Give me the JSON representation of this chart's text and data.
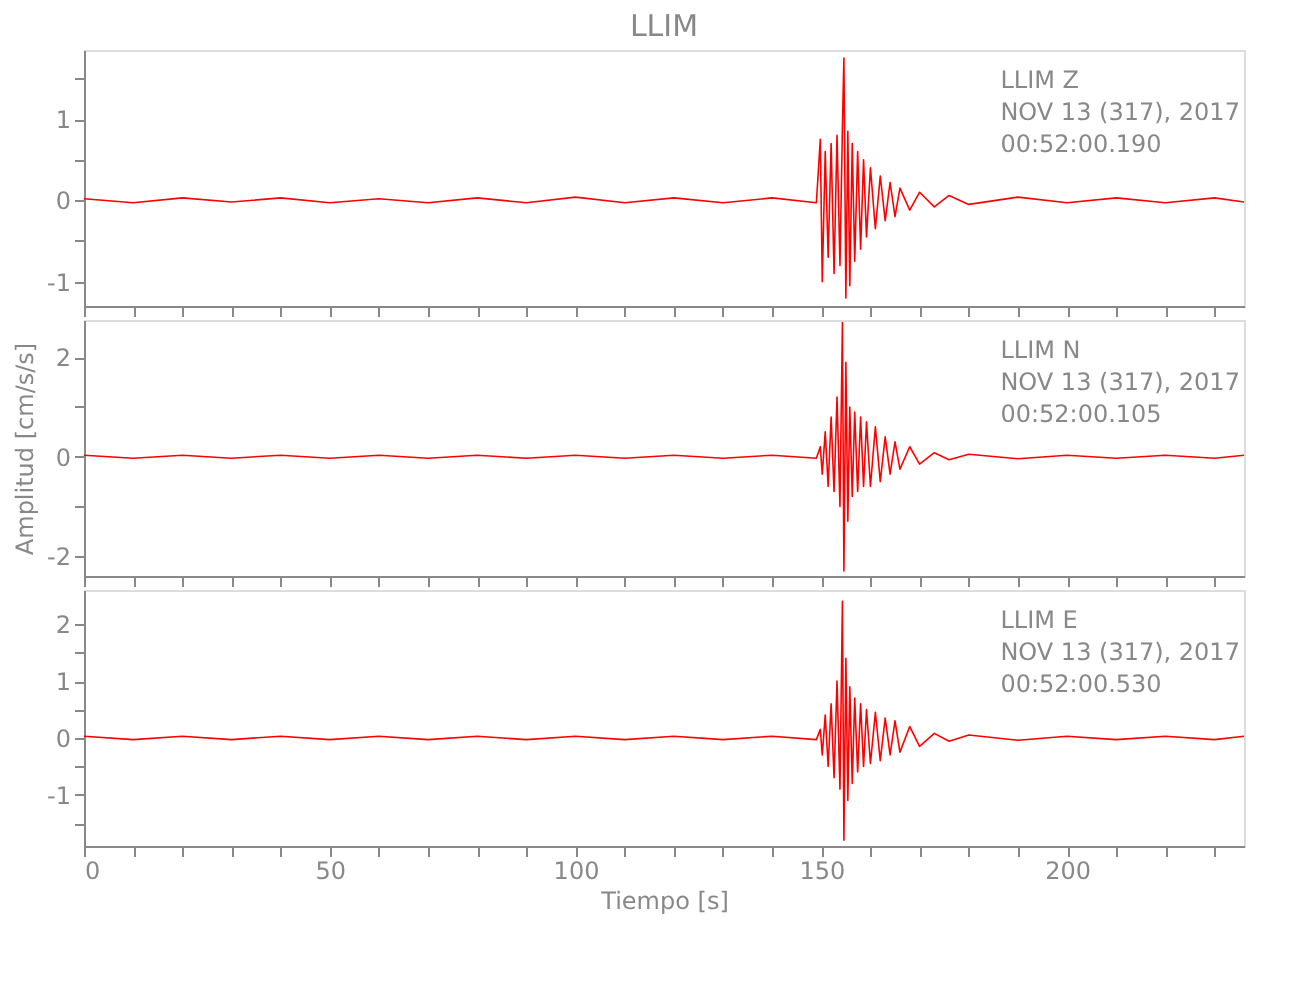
{
  "chart_data": [
    {
      "type": "line",
      "title": "LLIM",
      "annotations": [
        "LLIM   Z",
        "NOV 13 (317), 2017",
        "00:52:00.190"
      ],
      "tick_labels": "y",
      "grid": false,
      "x": [
        0,
        10,
        20,
        30,
        40,
        50,
        60,
        70,
        80,
        90,
        100,
        110,
        120,
        130,
        140,
        149,
        149.8,
        150.2,
        150.8,
        151.4,
        152,
        152.6,
        153.2,
        153.8,
        154.3,
        154.6,
        155,
        155.4,
        155.8,
        156.3,
        156.8,
        157.4,
        158,
        158.6,
        159.2,
        160,
        161,
        162,
        163,
        164,
        165,
        166,
        168,
        170,
        173,
        176,
        180,
        190,
        200,
        210,
        220,
        230,
        236
      ],
      "series": [
        {
          "color": "#ff0000",
          "values": [
            0.02,
            -0.03,
            0.03,
            -0.02,
            0.03,
            -0.03,
            0.02,
            -0.03,
            0.03,
            -0.03,
            0.04,
            -0.03,
            0.03,
            -0.03,
            0.03,
            -0.03,
            0.75,
            -1.0,
            0.6,
            -0.7,
            0.7,
            -0.9,
            0.8,
            -0.8,
            0.9,
            1.75,
            -1.2,
            0.85,
            -1.05,
            0.7,
            -0.75,
            0.6,
            -0.6,
            0.5,
            -0.45,
            0.4,
            -0.35,
            0.3,
            -0.25,
            0.22,
            -0.2,
            0.15,
            -0.12,
            0.1,
            -0.08,
            0.06,
            -0.05,
            0.04,
            -0.03,
            0.03,
            -0.03,
            0.03,
            -0.02
          ]
        }
      ],
      "xlim": [
        0,
        236
      ],
      "xticks": [
        0,
        {
          "value": 10,
          "label": null
        },
        {
          "value": 20,
          "label": null
        },
        {
          "value": 30,
          "label": null
        },
        {
          "value": 40,
          "label": null
        },
        50,
        {
          "value": 60,
          "label": null
        },
        {
          "value": 70,
          "label": null
        },
        {
          "value": 80,
          "label": null
        },
        {
          "value": 90,
          "label": null
        },
        100,
        {
          "value": 110,
          "label": null
        },
        {
          "value": 120,
          "label": null
        },
        {
          "value": 130,
          "label": null
        },
        {
          "value": 140,
          "label": null
        },
        150,
        {
          "value": 160,
          "label": null
        },
        {
          "value": 170,
          "label": null
        },
        {
          "value": 180,
          "label": null
        },
        {
          "value": 190,
          "label": null
        },
        200,
        {
          "value": 210,
          "label": null
        },
        {
          "value": 220,
          "label": null
        },
        {
          "value": 230,
          "label": null
        }
      ],
      "ylim": [
        -1.3,
        1.85
      ],
      "yticks": [
        -1,
        {
          "value": -0.5,
          "label": null
        },
        0,
        {
          "value": 0.5,
          "label": null
        },
        1,
        {
          "value": 1.5,
          "label": null
        }
      ]
    },
    {
      "type": "line",
      "ylabel": "Amplitud [cm/s/s]",
      "annotations": [
        "LLIM   N",
        "NOV 13 (317), 2017",
        "00:52:00.105"
      ],
      "tick_labels": "y",
      "grid": false,
      "x": [
        0,
        10,
        20,
        30,
        40,
        50,
        60,
        70,
        80,
        90,
        100,
        110,
        120,
        130,
        140,
        149,
        149.8,
        150.2,
        150.8,
        151.4,
        152,
        152.6,
        153.2,
        153.8,
        154.3,
        154.6,
        155,
        155.4,
        155.8,
        156.3,
        156.8,
        157.4,
        158,
        158.6,
        159.2,
        160,
        161,
        162,
        163,
        164,
        165,
        166,
        168,
        170,
        173,
        176,
        180,
        190,
        200,
        210,
        220,
        230,
        236
      ],
      "series": [
        {
          "color": "#ff0000",
          "values": [
            0.03,
            -0.03,
            0.03,
            -0.03,
            0.03,
            -0.03,
            0.03,
            -0.03,
            0.03,
            -0.03,
            0.03,
            -0.03,
            0.03,
            -0.03,
            0.03,
            -0.03,
            0.2,
            -0.35,
            0.5,
            -0.6,
            0.8,
            -0.7,
            1.2,
            -1.0,
            2.7,
            -2.3,
            1.9,
            -1.3,
            1.0,
            -0.8,
            0.9,
            -0.7,
            0.8,
            -0.6,
            0.7,
            -0.6,
            0.6,
            -0.5,
            0.4,
            -0.35,
            0.3,
            -0.25,
            0.2,
            -0.15,
            0.08,
            -0.06,
            0.05,
            -0.04,
            0.03,
            -0.03,
            0.03,
            -0.03,
            0.03
          ]
        }
      ],
      "xlim": [
        0,
        236
      ],
      "xticks": [
        0,
        {
          "value": 10,
          "label": null
        },
        {
          "value": 20,
          "label": null
        },
        {
          "value": 30,
          "label": null
        },
        {
          "value": 40,
          "label": null
        },
        50,
        {
          "value": 60,
          "label": null
        },
        {
          "value": 70,
          "label": null
        },
        {
          "value": 80,
          "label": null
        },
        {
          "value": 90,
          "label": null
        },
        100,
        {
          "value": 110,
          "label": null
        },
        {
          "value": 120,
          "label": null
        },
        {
          "value": 130,
          "label": null
        },
        {
          "value": 140,
          "label": null
        },
        150,
        {
          "value": 160,
          "label": null
        },
        {
          "value": 170,
          "label": null
        },
        {
          "value": 180,
          "label": null
        },
        {
          "value": 190,
          "label": null
        },
        200,
        {
          "value": 210,
          "label": null
        },
        {
          "value": 220,
          "label": null
        },
        {
          "value": 230,
          "label": null
        }
      ],
      "ylim": [
        -2.4,
        2.75
      ],
      "yticks": [
        -2,
        {
          "value": -1,
          "label": null
        },
        0,
        {
          "value": 1,
          "label": null
        },
        2
      ]
    },
    {
      "type": "line",
      "xlabel": "Tiempo [s]",
      "annotations": [
        "LLIM   E",
        "NOV 13 (317), 2017",
        "00:52:00.530"
      ],
      "grid": false,
      "x": [
        0,
        10,
        20,
        30,
        40,
        50,
        60,
        70,
        80,
        90,
        100,
        110,
        120,
        130,
        140,
        149,
        149.8,
        150.2,
        150.8,
        151.4,
        152,
        152.6,
        153.2,
        153.8,
        154.3,
        154.6,
        155,
        155.4,
        155.8,
        156.3,
        156.8,
        157.4,
        158,
        158.6,
        159.2,
        160,
        161,
        162,
        163,
        164,
        165,
        166,
        168,
        170,
        173,
        176,
        180,
        190,
        200,
        210,
        220,
        230,
        236
      ],
      "series": [
        {
          "color": "#ff0000",
          "values": [
            0.03,
            -0.03,
            0.03,
            -0.03,
            0.03,
            -0.03,
            0.03,
            -0.03,
            0.03,
            -0.03,
            0.03,
            -0.03,
            0.03,
            -0.03,
            0.03,
            -0.03,
            0.15,
            -0.3,
            0.4,
            -0.5,
            0.6,
            -0.7,
            1.0,
            -0.9,
            2.4,
            -1.8,
            1.4,
            -1.1,
            0.9,
            -0.8,
            0.7,
            -0.6,
            0.6,
            -0.5,
            0.5,
            -0.45,
            0.45,
            -0.4,
            0.35,
            -0.3,
            0.3,
            -0.25,
            0.2,
            -0.15,
            0.08,
            -0.06,
            0.05,
            -0.04,
            0.03,
            -0.03,
            0.03,
            -0.03,
            0.03
          ]
        }
      ],
      "xlim": [
        0,
        236
      ],
      "xticks": [
        0,
        {
          "value": 10,
          "label": null
        },
        {
          "value": 20,
          "label": null
        },
        {
          "value": 30,
          "label": null
        },
        {
          "value": 40,
          "label": null
        },
        50,
        {
          "value": 60,
          "label": null
        },
        {
          "value": 70,
          "label": null
        },
        {
          "value": 80,
          "label": null
        },
        {
          "value": 90,
          "label": null
        },
        100,
        {
          "value": 110,
          "label": null
        },
        {
          "value": 120,
          "label": null
        },
        {
          "value": 130,
          "label": null
        },
        {
          "value": 140,
          "label": null
        },
        150,
        {
          "value": 160,
          "label": null
        },
        {
          "value": 170,
          "label": null
        },
        {
          "value": 180,
          "label": null
        },
        {
          "value": 190,
          "label": null
        },
        200,
        {
          "value": 210,
          "label": null
        },
        {
          "value": 220,
          "label": null
        },
        {
          "value": 230,
          "label": null
        }
      ],
      "ylim": [
        -1.9,
        2.6
      ],
      "yticks": [
        {
          "value": -1.5,
          "label": null
        },
        -1,
        {
          "value": -0.5,
          "label": null
        },
        0,
        {
          "value": 0.5,
          "label": null
        },
        1,
        {
          "value": 1.5,
          "label": null
        },
        2
      ]
    }
  ]
}
